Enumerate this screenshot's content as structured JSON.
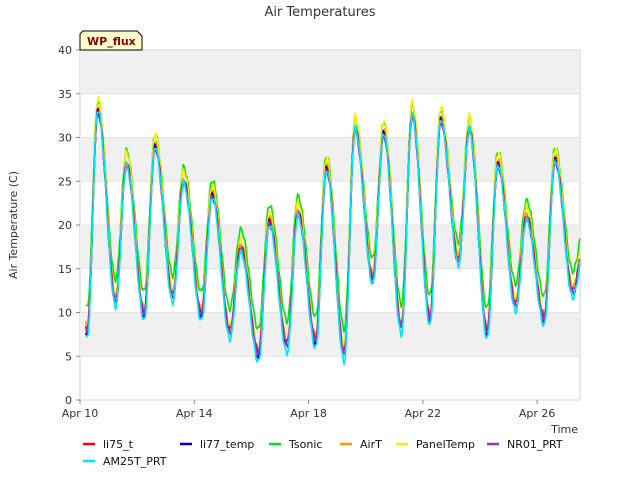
{
  "chart_data": {
    "type": "line",
    "title": "Air Temperatures",
    "xlabel": "Time",
    "ylabel": "Air Temperature (C)",
    "badge": "WP_flux",
    "ylim": [
      0,
      40
    ],
    "yticks": [
      0,
      5,
      10,
      15,
      20,
      25,
      30,
      35,
      40
    ],
    "xlim": [
      "2024-04-10",
      "2024-04-27T12:00"
    ],
    "xticks": [
      {
        "date": "2024-04-10",
        "label": "Apr 10"
      },
      {
        "date": "2024-04-14",
        "label": "Apr 14"
      },
      {
        "date": "2024-04-18",
        "label": "Apr 18"
      },
      {
        "date": "2024-04-22",
        "label": "Apr 22"
      },
      {
        "date": "2024-04-26",
        "label": "Apr 26"
      }
    ],
    "grid": "horizontal bands",
    "legend_position": "bottom",
    "daily_extremes": [
      {
        "date": "2024-04-10",
        "min": 8.0,
        "max": 33.0
      },
      {
        "date": "2024-04-11",
        "min": 11.5,
        "max": 27.0
      },
      {
        "date": "2024-04-12",
        "min": 10.0,
        "max": 29.0
      },
      {
        "date": "2024-04-13",
        "min": 12.0,
        "max": 25.0
      },
      {
        "date": "2024-04-14",
        "min": 10.0,
        "max": 23.5
      },
      {
        "date": "2024-04-15",
        "min": 8.0,
        "max": 17.5
      },
      {
        "date": "2024-04-16",
        "min": 5.5,
        "max": 20.5
      },
      {
        "date": "2024-04-17",
        "min": 6.5,
        "max": 21.5
      },
      {
        "date": "2024-04-18",
        "min": 7.0,
        "max": 26.5
      },
      {
        "date": "2024-04-19",
        "min": 5.5,
        "max": 31.0
      },
      {
        "date": "2024-04-20",
        "min": 14.0,
        "max": 30.5
      },
      {
        "date": "2024-04-21",
        "min": 8.5,
        "max": 32.5
      },
      {
        "date": "2024-04-22",
        "min": 9.5,
        "max": 32.0
      },
      {
        "date": "2024-04-23",
        "min": 16.0,
        "max": 31.0
      },
      {
        "date": "2024-04-24",
        "min": 8.0,
        "max": 27.0
      },
      {
        "date": "2024-04-25",
        "min": 11.0,
        "max": 21.0
      },
      {
        "date": "2024-04-26",
        "min": 9.5,
        "max": 27.5
      },
      {
        "date": "2024-04-27",
        "min": 12.5,
        "max": null
      }
    ],
    "series": [
      {
        "name": "li75_t",
        "color": "#ff0000",
        "offset": 0.0,
        "amp": 1.0
      },
      {
        "name": "li77_temp",
        "color": "#0000cc",
        "offset": -0.3,
        "amp": 1.02
      },
      {
        "name": "Tsonic",
        "color": "#00e600",
        "offset": 2.0,
        "amp": 0.95
      },
      {
        "name": "AirT",
        "color": "#ff9900",
        "offset": 0.3,
        "amp": 1.0
      },
      {
        "name": "PanelTemp",
        "color": "#ffee00",
        "offset": 0.8,
        "amp": 1.05
      },
      {
        "name": "NR01_PRT",
        "color": "#9933cc",
        "offset": -0.2,
        "amp": 1.0
      },
      {
        "name": "AM25T_PRT",
        "color": "#00e5ff",
        "offset": -0.6,
        "amp": 1.05
      }
    ]
  }
}
